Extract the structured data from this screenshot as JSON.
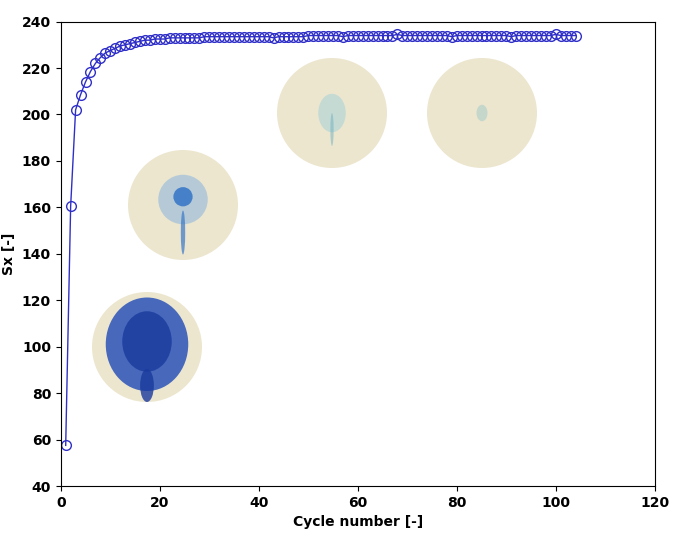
{
  "chart_data": {
    "type": "line",
    "x_label": "Cycle number [-]",
    "y_label": "Sx [-]",
    "x": [
      1,
      2,
      3,
      4,
      5,
      6,
      7,
      8,
      9,
      10,
      11,
      12,
      13,
      14,
      15,
      16,
      17,
      18,
      19,
      20,
      21,
      22,
      23,
      24,
      25,
      26,
      27,
      28,
      29,
      30,
      31,
      32,
      33,
      34,
      35,
      36,
      37,
      38,
      39,
      40,
      41,
      42,
      43,
      44,
      45,
      46,
      47,
      48,
      49,
      50,
      51,
      52,
      53,
      54,
      55,
      56,
      57,
      58,
      59,
      60,
      61,
      62,
      63,
      64,
      65,
      66,
      67,
      68,
      69,
      70,
      71,
      72,
      73,
      74,
      75,
      76,
      77,
      78,
      79,
      80,
      81,
      82,
      83,
      84,
      85,
      86,
      87,
      88,
      89,
      90,
      91,
      92,
      93,
      94,
      95,
      96,
      97,
      98,
      99,
      100,
      101,
      102,
      103,
      104
    ],
    "values": [
      57.5,
      160.5,
      202,
      208.5,
      214,
      218.5,
      222,
      224.5,
      226.5,
      227.5,
      228.5,
      229.5,
      230,
      230.5,
      231,
      231.5,
      232,
      232,
      232.5,
      232.5,
      232.5,
      233,
      233,
      233,
      233,
      233,
      233,
      233,
      233.5,
      233.5,
      233.5,
      233.5,
      233.5,
      233.5,
      233.5,
      233.5,
      233.5,
      233.5,
      233.5,
      233.5,
      233.5,
      233.5,
      233,
      233.5,
      233.5,
      233.5,
      233.5,
      233.5,
      233.5,
      234,
      234,
      234,
      234,
      234,
      234,
      234,
      233.5,
      234,
      234,
      234,
      234,
      234,
      234,
      234,
      234,
      234,
      234,
      234.5,
      234,
      234,
      234,
      234,
      234,
      234,
      234,
      234,
      234,
      234,
      233.5,
      234,
      234,
      234,
      234,
      234,
      234,
      234,
      234,
      234,
      234,
      234,
      233.5,
      234,
      234,
      234,
      234,
      234,
      234,
      234,
      234,
      234.5,
      234,
      234,
      234,
      234
    ],
    "color": "#2f2fc8",
    "marker": "circle",
    "line_style": "solid",
    "xlim": [
      0,
      120
    ],
    "xticks": [
      0,
      20,
      40,
      60,
      80,
      100,
      120
    ],
    "ylim": [
      40,
      240
    ],
    "yticks": [
      40,
      60,
      80,
      100,
      120,
      140,
      160,
      180,
      200,
      220,
      240
    ],
    "grid": false
  }
}
